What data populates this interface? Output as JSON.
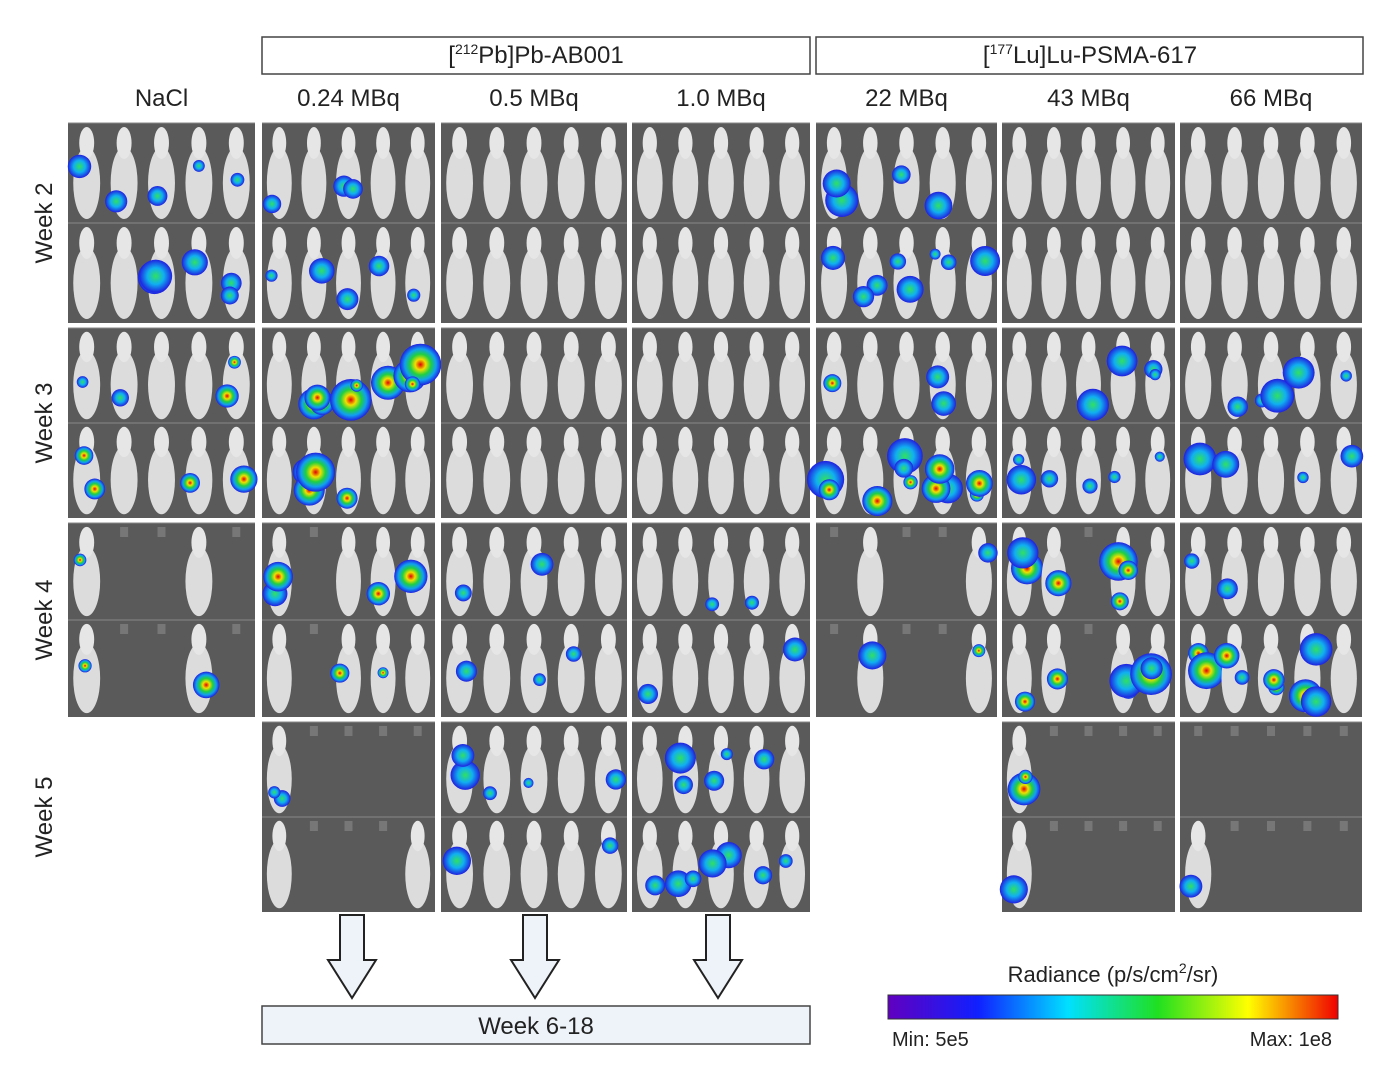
{
  "header": {
    "groups": [
      {
        "prefix": "[",
        "sup": "212",
        "suffix": "Pb]Pb-AB001"
      },
      {
        "prefix": "[",
        "sup": "177",
        "suffix": "Lu]Lu-PSMA-617"
      }
    ]
  },
  "columns": [
    "NaCl",
    "0.24 MBq",
    "0.5 MBq",
    "1.0 MBq",
    "22 MBq",
    "43 MBq",
    "66 MBq"
  ],
  "rows": [
    "Week 2",
    "Week 3",
    "Week 4",
    "Week 5"
  ],
  "footer": {
    "label": "Week 6-18"
  },
  "colorbar": {
    "title_main": "Radiance (p/s/cm",
    "title_sup": "2",
    "title_end": "/sr)",
    "min_label": "Min: 5e5",
    "max_label": "Max: 1e8"
  }
}
